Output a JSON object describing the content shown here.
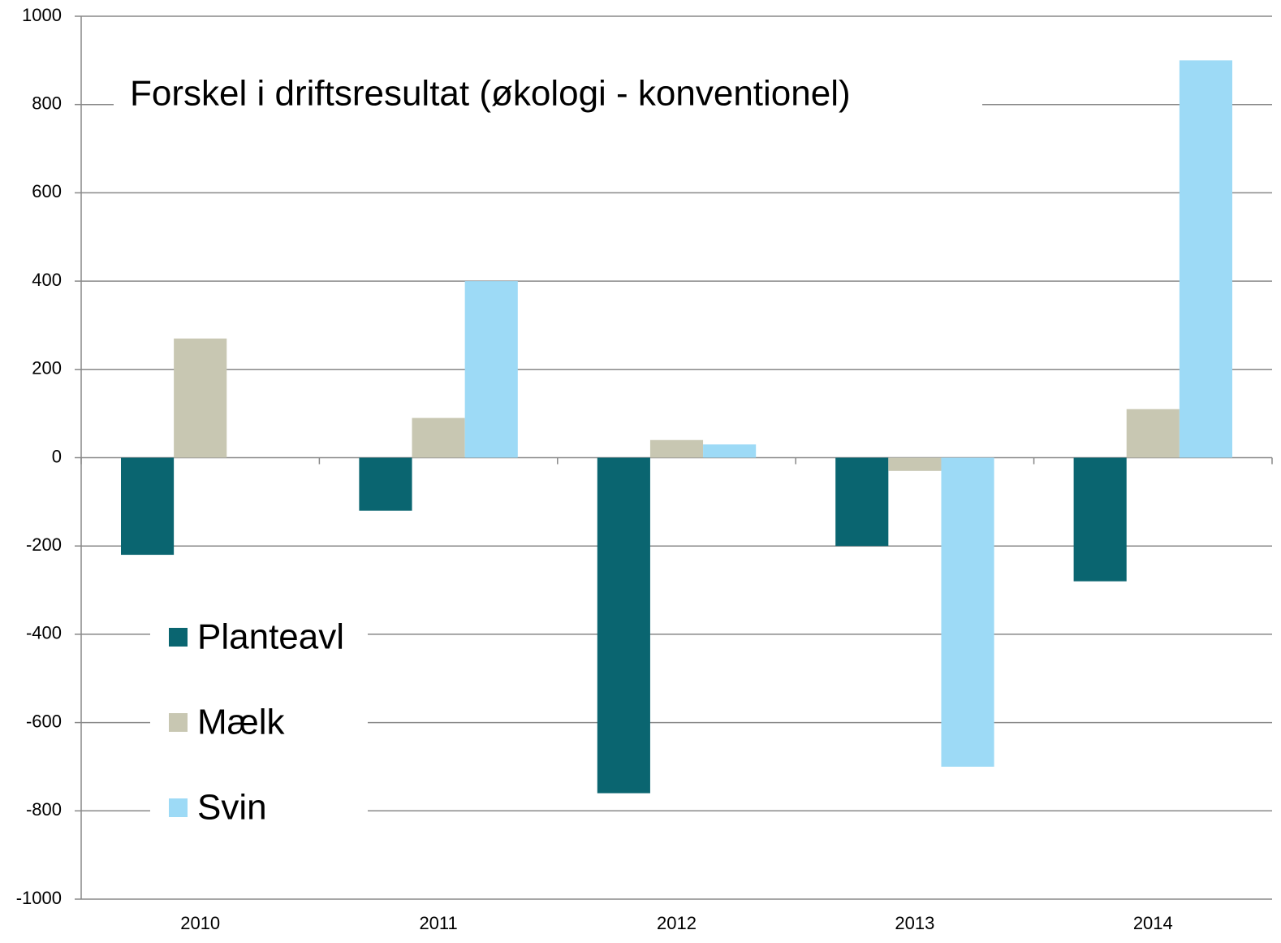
{
  "chart_data": {
    "type": "bar",
    "title": "Forskel i driftsresultat (økologi - konventionel)",
    "categories": [
      "2010",
      "2011",
      "2012",
      "2013",
      "2014"
    ],
    "series": [
      {
        "name": "Planteavl",
        "color": "#0a6570",
        "values": [
          -220,
          -120,
          -760,
          -200,
          -280
        ]
      },
      {
        "name": "Mælk",
        "color": "#c8c7b2",
        "values": [
          270,
          90,
          40,
          -30,
          110
        ]
      },
      {
        "name": "Svin",
        "color": "#9ddaf6",
        "values": [
          null,
          400,
          30,
          -700,
          900
        ]
      }
    ],
    "ylim": [
      -1000,
      1000
    ],
    "yticks": [
      -1000,
      -800,
      -600,
      -400,
      -200,
      0,
      200,
      400,
      600,
      800,
      1000
    ],
    "grid": true,
    "legend": "lower left"
  }
}
